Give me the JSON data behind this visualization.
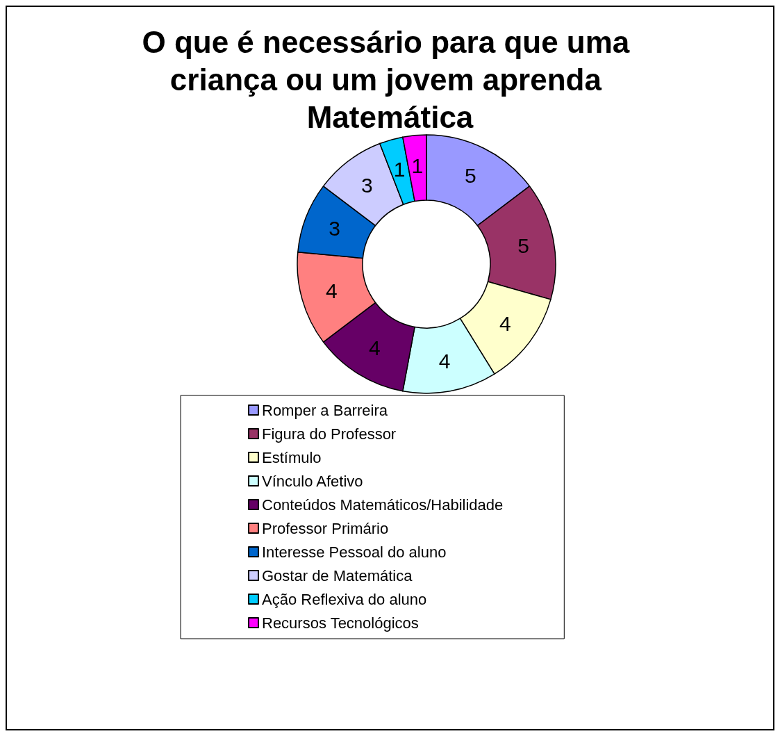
{
  "chart_data": {
    "type": "donut",
    "title": "O que é necessário para que uma criança ou um jovem aprenda Matemática",
    "categories": [
      "Romper a Barreira",
      "Figura do Professor",
      "Estímulo",
      "Vínculo Afetivo",
      "Conteúdos Matemáticos/Habilidade",
      "Professor Primário",
      "Interesse Pessoal do aluno",
      "Gostar de Matemática",
      "Ação Reflexiva do aluno",
      "Recursos Tecnológicos"
    ],
    "values": [
      5,
      5,
      4,
      4,
      4,
      4,
      3,
      3,
      1,
      1
    ],
    "colors": [
      "#9999ff",
      "#993366",
      "#ffffcc",
      "#ccffff",
      "#660066",
      "#ff8080",
      "#0066cc",
      "#ccccff",
      "#00ccff",
      "#ff00ff"
    ],
    "data_labels": true,
    "legend": "bottom"
  }
}
